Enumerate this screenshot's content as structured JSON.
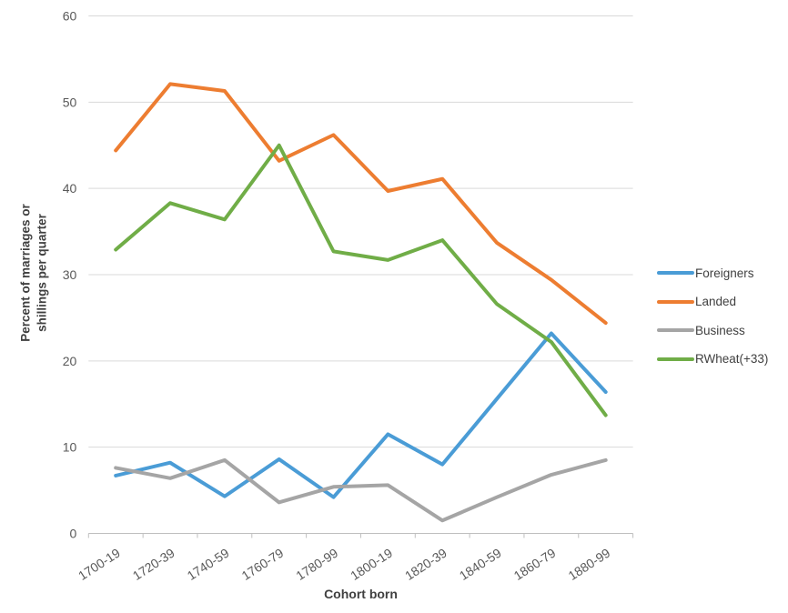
{
  "chart_data": {
    "type": "line",
    "title": "",
    "xlabel": "Cohort born",
    "ylabel": "Percent of marriages or shillings per quarter",
    "ylim": [
      0,
      60
    ],
    "yticks": [
      0,
      10,
      20,
      30,
      40,
      50,
      60
    ],
    "grid": true,
    "legend_position": "right",
    "categories": [
      "1700-19",
      "1720-39",
      "1740-59",
      "1760-79",
      "1780-99",
      "1800-19",
      "1820-39",
      "1840-59",
      "1860-79",
      "1880-99"
    ],
    "series": [
      {
        "name": "Foreigners",
        "color": "#4A9CD6",
        "values": [
          6.7,
          8.2,
          4.3,
          8.6,
          4.2,
          11.5,
          8.0,
          15.6,
          23.2,
          16.4
        ]
      },
      {
        "name": "Landed",
        "color": "#ED7D31",
        "values": [
          44.4,
          52.1,
          51.3,
          43.2,
          46.2,
          39.7,
          41.1,
          33.7,
          29.4,
          24.4
        ]
      },
      {
        "name": "Business",
        "color": "#A5A5A5",
        "values": [
          7.6,
          6.4,
          8.5,
          3.6,
          5.4,
          5.6,
          1.5,
          4.2,
          6.8,
          8.5
        ]
      },
      {
        "name": "RWheat(+33)",
        "color": "#70AD47",
        "values": [
          32.9,
          38.3,
          36.4,
          45.0,
          32.7,
          31.7,
          34.0,
          26.6,
          22.2,
          13.7
        ]
      }
    ],
    "style": {
      "grid_color": "#D9D9D9",
      "axis_color": "#BFBFBF",
      "tick_label_color": "#595959",
      "line_width": 4
    }
  }
}
